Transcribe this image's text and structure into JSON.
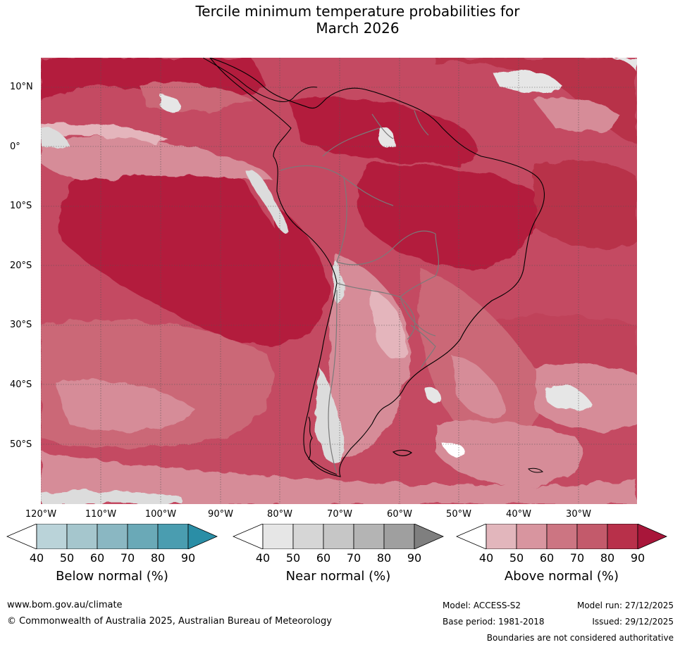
{
  "title_line1": "Tercile minimum temperature probabilities for",
  "title_line2": "March 2026",
  "lat_labels": [
    "10°N",
    "0°",
    "10°S",
    "20°S",
    "30°S",
    "40°S",
    "50°S"
  ],
  "lon_labels": [
    "120°W",
    "110°W",
    "100°W",
    "90°W",
    "80°W",
    "70°W",
    "60°W",
    "50°W",
    "40°W",
    "30°W"
  ],
  "legends": [
    {
      "title": "Below normal (%)",
      "ticks": [
        "40",
        "50",
        "60",
        "70",
        "80",
        "90"
      ],
      "colors": [
        "#ffffff",
        "#bad3d9",
        "#a5c6cd",
        "#8ab7c2",
        "#6aa9b7",
        "#4a9db0",
        "#2a8ea6"
      ]
    },
    {
      "title": "Near normal (%)",
      "ticks": [
        "40",
        "50",
        "60",
        "70",
        "80",
        "90"
      ],
      "colors": [
        "#ffffff",
        "#e6e6e6",
        "#d6d6d6",
        "#c6c6c6",
        "#b4b4b4",
        "#9f9f9f",
        "#7f7f7f"
      ]
    },
    {
      "title": "Above normal (%)",
      "ticks": [
        "40",
        "50",
        "60",
        "70",
        "80",
        "90"
      ],
      "colors": [
        "#ffffff",
        "#e2b6bc",
        "#d8959f",
        "#cc7582",
        "#c35a6b",
        "#b8304a",
        "#a8163a"
      ]
    }
  ],
  "footer": {
    "url": "www.bom.gov.au/climate",
    "copyright": "© Commonwealth of Australia 2025, Australian Bureau of Meteorology",
    "model": "Model: ACCESS-S2",
    "model_run": "Model run: 27/12/2025",
    "base_period": "Base period: 1981-2018",
    "issued": "Issued: 29/12/2025",
    "disclaimer": "Boundaries are not considered authoritative"
  },
  "colors": {
    "above_90": "#b31c3d",
    "above_80": "#c0435a",
    "above_70": "#cb6877",
    "above_60": "#d68c98",
    "above_50": "#e4b5bc",
    "near_40": "#dcdcdc"
  }
}
